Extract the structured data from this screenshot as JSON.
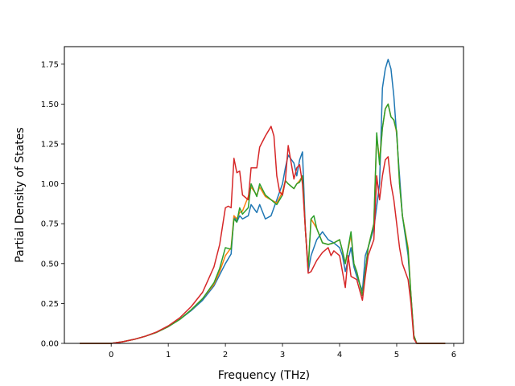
{
  "chart_data": {
    "type": "line",
    "title": "",
    "xlabel": "Frequency (THz)",
    "ylabel": "Partial Density of States",
    "xlim": [
      -0.82,
      6.17
    ],
    "ylim": [
      0,
      1.86
    ],
    "xticks": [
      0,
      1,
      2,
      3,
      4,
      5,
      6
    ],
    "yticks": [
      0.0,
      0.25,
      0.5,
      0.75,
      1.0,
      1.25,
      1.5,
      1.75
    ],
    "xtick_labels": [
      "0",
      "1",
      "2",
      "3",
      "4",
      "5",
      "6"
    ],
    "ytick_labels": [
      "0.00",
      "0.25",
      "0.50",
      "0.75",
      "1.00",
      "1.25",
      "1.50",
      "1.75"
    ],
    "grid": false,
    "legend": "none",
    "series": [
      {
        "color": "#1f77b4",
        "points": [
          [
            -0.55,
            0
          ],
          [
            0,
            0
          ],
          [
            0.2,
            0.01
          ],
          [
            0.4,
            0.025
          ],
          [
            0.6,
            0.045
          ],
          [
            0.8,
            0.07
          ],
          [
            1.0,
            0.105
          ],
          [
            1.2,
            0.15
          ],
          [
            1.4,
            0.205
          ],
          [
            1.6,
            0.27
          ],
          [
            1.8,
            0.36
          ],
          [
            1.9,
            0.43
          ],
          [
            2.0,
            0.5
          ],
          [
            2.1,
            0.56
          ],
          [
            2.15,
            0.8
          ],
          [
            2.2,
            0.76
          ],
          [
            2.25,
            0.8
          ],
          [
            2.3,
            0.78
          ],
          [
            2.4,
            0.8
          ],
          [
            2.45,
            0.87
          ],
          [
            2.55,
            0.82
          ],
          [
            2.6,
            0.87
          ],
          [
            2.7,
            0.78
          ],
          [
            2.8,
            0.8
          ],
          [
            2.9,
            0.9
          ],
          [
            3.0,
            1.0
          ],
          [
            3.05,
            1.1
          ],
          [
            3.1,
            1.18
          ],
          [
            3.2,
            1.13
          ],
          [
            3.25,
            1.05
          ],
          [
            3.3,
            1.15
          ],
          [
            3.35,
            1.2
          ],
          [
            3.4,
            0.72
          ],
          [
            3.45,
            0.45
          ],
          [
            3.5,
            0.55
          ],
          [
            3.6,
            0.65
          ],
          [
            3.7,
            0.7
          ],
          [
            3.8,
            0.65
          ],
          [
            3.9,
            0.63
          ],
          [
            4.0,
            0.6
          ],
          [
            4.05,
            0.55
          ],
          [
            4.1,
            0.45
          ],
          [
            4.2,
            0.6
          ],
          [
            4.25,
            0.48
          ],
          [
            4.3,
            0.42
          ],
          [
            4.4,
            0.33
          ],
          [
            4.45,
            0.55
          ],
          [
            4.5,
            0.6
          ],
          [
            4.6,
            0.72
          ],
          [
            4.7,
            1.0
          ],
          [
            4.75,
            1.6
          ],
          [
            4.8,
            1.72
          ],
          [
            4.85,
            1.78
          ],
          [
            4.9,
            1.72
          ],
          [
            4.95,
            1.55
          ],
          [
            5.0,
            1.3
          ],
          [
            5.05,
            1.05
          ],
          [
            5.1,
            0.8
          ],
          [
            5.2,
            0.55
          ],
          [
            5.25,
            0.3
          ],
          [
            5.3,
            0.05
          ],
          [
            5.35,
            0
          ],
          [
            5.85,
            0
          ]
        ]
      },
      {
        "color": "#ff7f0e",
        "points": [
          [
            -0.55,
            0
          ],
          [
            0,
            0
          ],
          [
            0.2,
            0.01
          ],
          [
            0.4,
            0.025
          ],
          [
            0.6,
            0.045
          ],
          [
            0.8,
            0.07
          ],
          [
            1.0,
            0.105
          ],
          [
            1.2,
            0.15
          ],
          [
            1.4,
            0.21
          ],
          [
            1.6,
            0.28
          ],
          [
            1.8,
            0.37
          ],
          [
            1.9,
            0.45
          ],
          [
            2.0,
            0.55
          ],
          [
            2.1,
            0.6
          ],
          [
            2.15,
            0.8
          ],
          [
            2.2,
            0.78
          ],
          [
            2.25,
            0.82
          ],
          [
            2.3,
            0.83
          ],
          [
            2.4,
            0.92
          ],
          [
            2.45,
            0.98
          ],
          [
            2.55,
            0.93
          ],
          [
            2.6,
            0.98
          ],
          [
            2.7,
            0.92
          ],
          [
            2.8,
            0.9
          ],
          [
            2.9,
            0.88
          ],
          [
            3.0,
            0.95
          ],
          [
            3.05,
            1.02
          ],
          [
            3.1,
            1.0
          ],
          [
            3.2,
            0.97
          ],
          [
            3.25,
            1.0
          ],
          [
            3.3,
            1.02
          ],
          [
            3.35,
            1.05
          ],
          [
            3.4,
            0.72
          ],
          [
            3.45,
            0.47
          ],
          [
            3.5,
            0.78
          ],
          [
            3.6,
            0.72
          ],
          [
            3.7,
            0.63
          ],
          [
            3.8,
            0.62
          ],
          [
            3.9,
            0.63
          ],
          [
            4.0,
            0.65
          ],
          [
            4.05,
            0.58
          ],
          [
            4.1,
            0.5
          ],
          [
            4.2,
            0.68
          ],
          [
            4.25,
            0.5
          ],
          [
            4.3,
            0.45
          ],
          [
            4.4,
            0.3
          ],
          [
            4.45,
            0.45
          ],
          [
            4.5,
            0.6
          ],
          [
            4.6,
            0.75
          ],
          [
            4.65,
            1.3
          ],
          [
            4.7,
            1.15
          ],
          [
            4.75,
            1.35
          ],
          [
            4.8,
            1.47
          ],
          [
            4.85,
            1.5
          ],
          [
            4.9,
            1.42
          ],
          [
            4.95,
            1.4
          ],
          [
            5.0,
            1.32
          ],
          [
            5.05,
            1.0
          ],
          [
            5.1,
            0.8
          ],
          [
            5.2,
            0.6
          ],
          [
            5.25,
            0.3
          ],
          [
            5.3,
            0.05
          ],
          [
            5.35,
            0
          ],
          [
            5.85,
            0
          ]
        ]
      },
      {
        "color": "#2ca02c",
        "points": [
          [
            -0.55,
            0
          ],
          [
            0,
            0
          ],
          [
            0.2,
            0.01
          ],
          [
            0.4,
            0.025
          ],
          [
            0.6,
            0.045
          ],
          [
            0.8,
            0.07
          ],
          [
            1.0,
            0.105
          ],
          [
            1.2,
            0.15
          ],
          [
            1.4,
            0.21
          ],
          [
            1.6,
            0.28
          ],
          [
            1.8,
            0.38
          ],
          [
            1.9,
            0.47
          ],
          [
            2.0,
            0.6
          ],
          [
            2.1,
            0.59
          ],
          [
            2.15,
            0.78
          ],
          [
            2.2,
            0.76
          ],
          [
            2.25,
            0.85
          ],
          [
            2.3,
            0.81
          ],
          [
            2.4,
            0.85
          ],
          [
            2.45,
            1.0
          ],
          [
            2.55,
            0.92
          ],
          [
            2.6,
            1.0
          ],
          [
            2.7,
            0.93
          ],
          [
            2.8,
            0.9
          ],
          [
            2.9,
            0.87
          ],
          [
            3.0,
            0.93
          ],
          [
            3.05,
            1.02
          ],
          [
            3.1,
            1.0
          ],
          [
            3.2,
            0.97
          ],
          [
            3.25,
            1.0
          ],
          [
            3.3,
            1.01
          ],
          [
            3.35,
            1.05
          ],
          [
            3.4,
            0.72
          ],
          [
            3.45,
            0.47
          ],
          [
            3.5,
            0.78
          ],
          [
            3.55,
            0.8
          ],
          [
            3.6,
            0.72
          ],
          [
            3.7,
            0.63
          ],
          [
            3.8,
            0.62
          ],
          [
            3.9,
            0.63
          ],
          [
            4.0,
            0.65
          ],
          [
            4.05,
            0.58
          ],
          [
            4.1,
            0.5
          ],
          [
            4.2,
            0.7
          ],
          [
            4.25,
            0.5
          ],
          [
            4.3,
            0.45
          ],
          [
            4.4,
            0.3
          ],
          [
            4.45,
            0.45
          ],
          [
            4.5,
            0.6
          ],
          [
            4.6,
            0.75
          ],
          [
            4.65,
            1.32
          ],
          [
            4.7,
            1.12
          ],
          [
            4.75,
            1.35
          ],
          [
            4.8,
            1.47
          ],
          [
            4.85,
            1.5
          ],
          [
            4.9,
            1.42
          ],
          [
            4.95,
            1.4
          ],
          [
            5.0,
            1.33
          ],
          [
            5.05,
            1.0
          ],
          [
            5.1,
            0.8
          ],
          [
            5.2,
            0.58
          ],
          [
            5.25,
            0.3
          ],
          [
            5.3,
            0.05
          ],
          [
            5.35,
            0
          ],
          [
            5.85,
            0
          ]
        ]
      },
      {
        "color": "#d62728",
        "points": [
          [
            -0.55,
            0
          ],
          [
            0,
            0
          ],
          [
            0.2,
            0.01
          ],
          [
            0.4,
            0.025
          ],
          [
            0.6,
            0.045
          ],
          [
            0.8,
            0.072
          ],
          [
            1.0,
            0.11
          ],
          [
            1.2,
            0.16
          ],
          [
            1.4,
            0.23
          ],
          [
            1.6,
            0.32
          ],
          [
            1.8,
            0.48
          ],
          [
            1.9,
            0.62
          ],
          [
            2.0,
            0.85
          ],
          [
            2.05,
            0.86
          ],
          [
            2.1,
            0.85
          ],
          [
            2.15,
            1.16
          ],
          [
            2.2,
            1.07
          ],
          [
            2.25,
            1.08
          ],
          [
            2.3,
            0.93
          ],
          [
            2.4,
            0.9
          ],
          [
            2.45,
            1.1
          ],
          [
            2.55,
            1.1
          ],
          [
            2.6,
            1.23
          ],
          [
            2.7,
            1.3
          ],
          [
            2.8,
            1.36
          ],
          [
            2.85,
            1.3
          ],
          [
            2.9,
            1.05
          ],
          [
            2.95,
            0.95
          ],
          [
            3.0,
            0.93
          ],
          [
            3.05,
            1.02
          ],
          [
            3.1,
            1.24
          ],
          [
            3.2,
            1.03
          ],
          [
            3.25,
            1.1
          ],
          [
            3.3,
            1.12
          ],
          [
            3.35,
            1.0
          ],
          [
            3.4,
            0.72
          ],
          [
            3.45,
            0.44
          ],
          [
            3.5,
            0.45
          ],
          [
            3.6,
            0.52
          ],
          [
            3.7,
            0.57
          ],
          [
            3.8,
            0.6
          ],
          [
            3.85,
            0.55
          ],
          [
            3.9,
            0.58
          ],
          [
            4.0,
            0.55
          ],
          [
            4.05,
            0.45
          ],
          [
            4.1,
            0.35
          ],
          [
            4.15,
            0.55
          ],
          [
            4.2,
            0.42
          ],
          [
            4.3,
            0.4
          ],
          [
            4.4,
            0.27
          ],
          [
            4.45,
            0.42
          ],
          [
            4.5,
            0.55
          ],
          [
            4.6,
            0.65
          ],
          [
            4.65,
            1.05
          ],
          [
            4.7,
            0.9
          ],
          [
            4.75,
            1.05
          ],
          [
            4.8,
            1.15
          ],
          [
            4.85,
            1.17
          ],
          [
            4.9,
            1.0
          ],
          [
            4.95,
            0.9
          ],
          [
            5.0,
            0.75
          ],
          [
            5.05,
            0.6
          ],
          [
            5.1,
            0.5
          ],
          [
            5.2,
            0.4
          ],
          [
            5.25,
            0.25
          ],
          [
            5.3,
            0.03
          ],
          [
            5.35,
            0
          ],
          [
            5.85,
            0
          ]
        ]
      }
    ]
  }
}
